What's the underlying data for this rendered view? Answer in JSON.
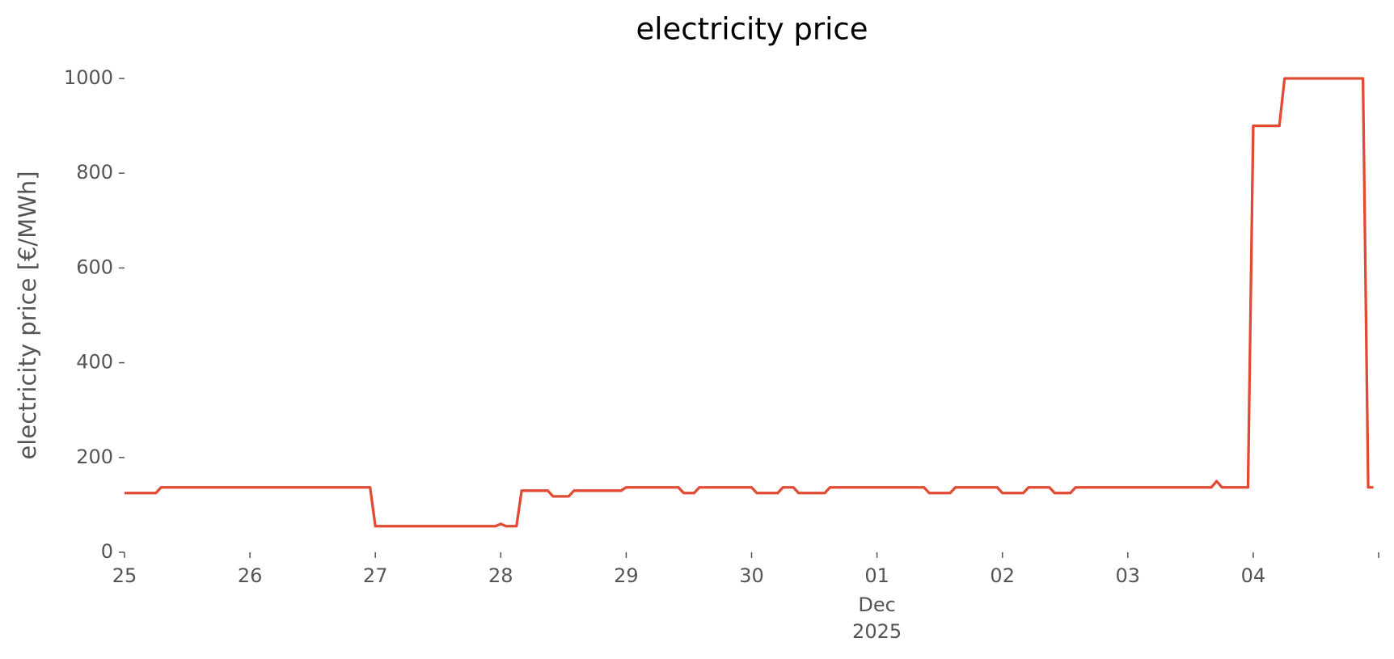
{
  "chart_data": {
    "type": "line",
    "title": "electricity price",
    "ylabel": "electricity price [€/MWh]",
    "x": [
      "2025-11-25T00:00",
      "2025-11-25T06:00",
      "2025-11-25T07:00",
      "2025-11-26T23:00",
      "2025-11-27T00:00",
      "2025-11-27T23:00",
      "2025-11-28T00:00",
      "2025-11-28T01:00",
      "2025-11-28T03:00",
      "2025-11-28T04:00",
      "2025-11-28T09:00",
      "2025-11-28T10:00",
      "2025-11-28T13:00",
      "2025-11-28T14:00",
      "2025-11-28T23:00",
      "2025-11-29T00:00",
      "2025-11-29T10:00",
      "2025-11-29T11:00",
      "2025-11-29T13:00",
      "2025-11-29T14:00",
      "2025-11-30T00:00",
      "2025-11-30T01:00",
      "2025-11-30T05:00",
      "2025-11-30T06:00",
      "2025-11-30T08:00",
      "2025-11-30T09:00",
      "2025-11-30T14:00",
      "2025-11-30T15:00",
      "2025-12-01T09:00",
      "2025-12-01T10:00",
      "2025-12-01T14:00",
      "2025-12-01T15:00",
      "2025-12-01T23:00",
      "2025-12-02T00:00",
      "2025-12-02T04:00",
      "2025-12-02T05:00",
      "2025-12-02T09:00",
      "2025-12-02T10:00",
      "2025-12-02T13:00",
      "2025-12-02T14:00",
      "2025-12-03T16:00",
      "2025-12-03T17:00",
      "2025-12-03T18:00",
      "2025-12-03T23:00",
      "2025-12-04T00:00",
      "2025-12-04T05:00",
      "2025-12-04T06:00",
      "2025-12-04T21:00",
      "2025-12-04T22:00",
      "2025-12-04T23:00"
    ],
    "series": [
      {
        "name": "electricity price",
        "color": "#E24A33",
        "values": [
          125,
          125,
          137,
          137,
          55,
          55,
          60,
          55,
          55,
          130,
          130,
          118,
          118,
          130,
          130,
          137,
          137,
          125,
          125,
          137,
          137,
          125,
          125,
          137,
          137,
          125,
          125,
          137,
          137,
          125,
          125,
          137,
          137,
          125,
          125,
          137,
          137,
          125,
          125,
          137,
          137,
          150,
          137,
          137,
          900,
          900,
          1000,
          1000,
          137,
          137
        ]
      }
    ],
    "xlim": [
      "2025-11-25T00:00",
      "2025-12-05T00:00"
    ],
    "xticks": [
      {
        "value": "2025-11-25",
        "label": "25"
      },
      {
        "value": "2025-11-26",
        "label": "26"
      },
      {
        "value": "2025-11-27",
        "label": "27"
      },
      {
        "value": "2025-11-28",
        "label": "28"
      },
      {
        "value": "2025-11-29",
        "label": "29"
      },
      {
        "value": "2025-11-30",
        "label": "30"
      },
      {
        "value": "2025-12-01",
        "label": "01"
      },
      {
        "value": "2025-12-02",
        "label": "02"
      },
      {
        "value": "2025-12-03",
        "label": "03"
      },
      {
        "value": "2025-12-04",
        "label": "04"
      },
      {
        "value": "2025-12-05",
        "label": null
      }
    ],
    "x_period_label": {
      "value": "2025-12-01",
      "lines": [
        "Dec",
        "2025"
      ]
    },
    "ylim": [
      0,
      1000
    ],
    "yticks": [
      0,
      200,
      400,
      600,
      800,
      1000
    ],
    "grid": false
  }
}
